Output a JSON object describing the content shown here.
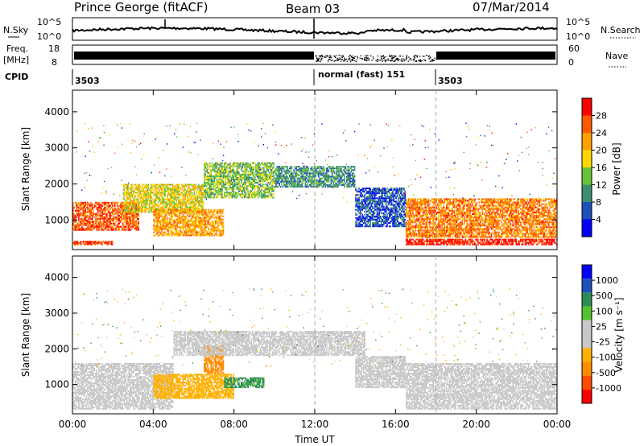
{
  "header": {
    "station": "Prince George (fitACF)",
    "beam": "Beam 03",
    "date": "07/Mar/2014"
  },
  "top_panels": {
    "nsky_label": "N.Sky",
    "nsearch_label": "N.Search",
    "nsky_ticks": [
      "10^5",
      "10^0"
    ],
    "nsearch_ticks": [
      "10^5",
      "10^0"
    ],
    "freq_label_1": "Freq.",
    "freq_label_2": "[MHz]",
    "freq_ticks": [
      "18",
      "8"
    ],
    "nave_label": "Nave",
    "nave_ticks": [
      "60",
      "0"
    ],
    "cpid_label": "CPID",
    "cpid_segments": [
      {
        "label": "3503",
        "start_hour": 0
      },
      {
        "label": "normal (fast) 151",
        "start_hour": 12
      },
      {
        "label": "3503",
        "start_hour": 18
      }
    ]
  },
  "colors": {
    "power_scale": [
      "#0000ff",
      "#1f4fb8",
      "#3b8f6e",
      "#66c33a",
      "#ffd700",
      "#ff9f00",
      "#ff5a00",
      "#ff0000"
    ],
    "velocity_scale": [
      "#ff0000",
      "#ff4d00",
      "#ff8c00",
      "#ffb000",
      "#c8c8c8",
      "#c8c8c8",
      "#55c030",
      "#2e8b57",
      "#1f4fb8",
      "#0000ff"
    ],
    "ground_scatter": "#c8c8c8"
  },
  "chart_data": [
    {
      "type": "heatmap",
      "name": "power",
      "ylabel": "Slant Range [km]",
      "xlabel": "",
      "colorbar_label": "Power [dB]",
      "colorbar_ticks": [
        "28",
        "24",
        "20",
        "16",
        "12",
        "8",
        "4"
      ],
      "colorbar_range": [
        0,
        32
      ],
      "xlim_hours": [
        0,
        24
      ],
      "ylim_km": [
        180,
        4600
      ],
      "yticks": [
        "4000",
        "3000",
        "2000",
        "1000"
      ],
      "scatter_regions": [
        {
          "t0": 0.0,
          "t1": 3.3,
          "r0": 700,
          "r1": 1500,
          "level": 26
        },
        {
          "t0": 0.0,
          "t1": 2.0,
          "r0": 300,
          "r1": 420,
          "level": 28
        },
        {
          "t0": 2.5,
          "t1": 6.5,
          "r0": 1200,
          "r1": 2000,
          "level": 18
        },
        {
          "t0": 4.0,
          "t1": 7.5,
          "r0": 550,
          "r1": 1300,
          "level": 22
        },
        {
          "t0": 6.5,
          "t1": 10.0,
          "r0": 1600,
          "r1": 2600,
          "level": 14
        },
        {
          "t0": 10.0,
          "t1": 14.0,
          "r0": 1900,
          "r1": 2500,
          "level": 10
        },
        {
          "t0": 14.0,
          "t1": 16.5,
          "r0": 800,
          "r1": 1900,
          "level": 6
        },
        {
          "t0": 16.5,
          "t1": 24.0,
          "r0": 300,
          "r1": 480,
          "level": 30
        },
        {
          "t0": 16.5,
          "t1": 24.0,
          "r0": 500,
          "r1": 1600,
          "level": 24
        }
      ]
    },
    {
      "type": "heatmap",
      "name": "velocity",
      "ylabel": "Slant Range [km]",
      "xlabel": "Time UT",
      "colorbar_label": "Velocity [m s⁻¹]",
      "colorbar_ticks": [
        "1000",
        "500",
        "100",
        "25",
        "-25",
        "-100",
        "-500",
        "-1000"
      ],
      "xlim_hours": [
        0,
        24
      ],
      "ylim_km": [
        180,
        4600
      ],
      "yticks": [
        "4000",
        "3000",
        "2000",
        "1000"
      ],
      "xticks": [
        "00:00",
        "04:00",
        "08:00",
        "12:00",
        "16:00",
        "20:00",
        "00:00"
      ],
      "scatter_regions": [
        {
          "t0": 0.0,
          "t1": 5.0,
          "r0": 300,
          "r1": 1600,
          "vel": 0
        },
        {
          "t0": 4.0,
          "t1": 8.0,
          "r0": 600,
          "r1": 1300,
          "vel": -250
        },
        {
          "t0": 6.5,
          "t1": 7.5,
          "r0": 1300,
          "r1": 2100,
          "vel": -700
        },
        {
          "t0": 7.5,
          "t1": 9.5,
          "r0": 900,
          "r1": 1200,
          "vel": 150
        },
        {
          "t0": 5.0,
          "t1": 14.5,
          "r0": 1800,
          "r1": 2500,
          "vel": 0
        },
        {
          "t0": 14.0,
          "t1": 16.5,
          "r0": 900,
          "r1": 1800,
          "vel": 0
        },
        {
          "t0": 16.5,
          "t1": 24.0,
          "r0": 300,
          "r1": 1600,
          "vel": 0
        }
      ]
    }
  ]
}
